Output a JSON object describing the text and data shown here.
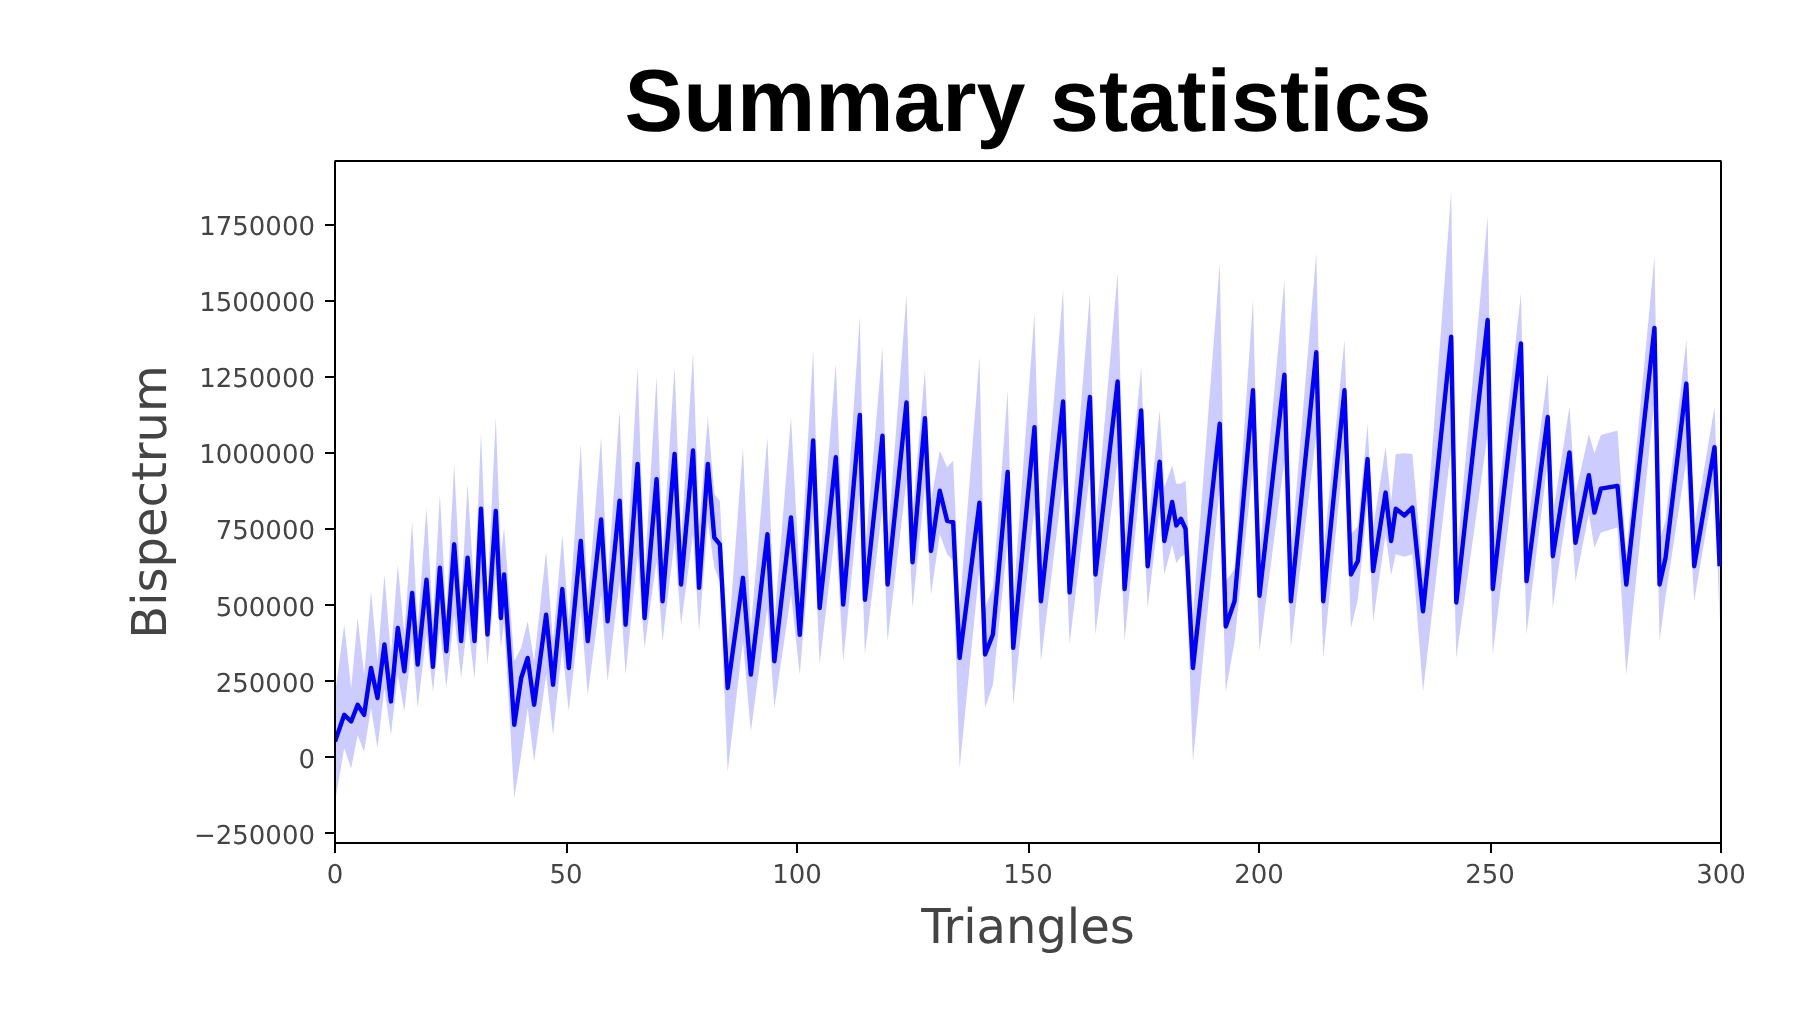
{
  "chart_data": {
    "type": "line",
    "title": "Summary statistics",
    "xlabel": "Triangles",
    "ylabel": "Bispectrum",
    "xlim": [
      0,
      300
    ],
    "ylim": [
      -280000,
      1960000
    ],
    "xticks": [
      0,
      50,
      100,
      150,
      200,
      250,
      300
    ],
    "yticks": [
      {
        "value": -250000,
        "label": "−250000"
      },
      0,
      250000,
      500000,
      750000,
      1000000,
      1250000,
      1500000,
      1750000
    ],
    "x": [
      0,
      2.0,
      3.5,
      4.9,
      6.3,
      7.8,
      9.2,
      10.7,
      12.1,
      13.6,
      15.0,
      16.7,
      17.9,
      19.8,
      21.2,
      22.7,
      24.1,
      25.8,
      27.3,
      28.7,
      30.2,
      31.6,
      33.0,
      34.8,
      35.9,
      36.6,
      38.8,
      40.3,
      41.7,
      43.1,
      45.7,
      47.2,
      49.2,
      50.6,
      53.2,
      54.7,
      57.6,
      59.0,
      61.6,
      62.9,
      65.5,
      67.0,
      69.6,
      70.9,
      73.5,
      74.9,
      77.5,
      78.8,
      80.7,
      82.1,
      83.3,
      85.0,
      88.3,
      90.0,
      93.6,
      95.1,
      98.7,
      100.6,
      103.5,
      104.9,
      108.4,
      110.0,
      113.6,
      114.7,
      118.5,
      119.6,
      123.7,
      125.0,
      127.7,
      129.0,
      130.9,
      132.5,
      133.8,
      135.2,
      139.5,
      140.7,
      142.4,
      145.6,
      146.8,
      151.4,
      152.8,
      157.6,
      159.0,
      163.4,
      164.6,
      169.4,
      170.9,
      174.5,
      175.9,
      178.5,
      179.5,
      181.2,
      182.1,
      183.1,
      184.1,
      185.7,
      191.5,
      192.8,
      194.7,
      198.7,
      200.1,
      205.5,
      206.9,
      212.4,
      213.9,
      218.5,
      219.9,
      221.4,
      223.5,
      224.7,
      227.4,
      228.6,
      229.6,
      231.5,
      233.2,
      235.5,
      241.6,
      242.7,
      249.5,
      250.6,
      256.7,
      257.9,
      262.5,
      263.6,
      267.2,
      268.5,
      271.4,
      272.6,
      274.0,
      277.6,
      279.5,
      285.6,
      286.7,
      288.0,
      292.5,
      294.2,
      298.6,
      299.7
    ],
    "series": [
      {
        "color": "#0000ff",
        "values": [
          53000,
          141000,
          119000,
          174000,
          141000,
          295000,
          196000,
          372000,
          185000,
          426000,
          284000,
          541000,
          306000,
          585000,
          299000,
          624000,
          350000,
          701000,
          383000,
          657000,
          383000,
          818000,
          405000,
          811000,
          459000,
          602000,
          108000,
          262000,
          328000,
          174000,
          470000,
          240000,
          554000,
          295000,
          712000,
          383000,
          783000,
          448000,
          844000,
          437000,
          965000,
          459000,
          915000,
          514000,
          998000,
          569000,
          1009000,
          558000,
          965000,
          723000,
          701000,
          229000,
          591000,
          273000,
          734000,
          317000,
          789000,
          404000,
          1042000,
          492000,
          987000,
          503000,
          1126000,
          519000,
          1058000,
          569000,
          1167000,
          642000,
          1115000,
          679000,
          877000,
          778000,
          774000,
          328000,
          838000,
          339000,
          405000,
          939000,
          361000,
          1086000,
          514000,
          1170000,
          543000,
          1185000,
          602000,
          1236000,
          554000,
          1141000,
          629000,
          972000,
          712000,
          840000,
          763000,
          785000,
          752000,
          295000,
          1097000,
          431000,
          514000,
          1207000,
          532000,
          1258000,
          514000,
          1332000,
          514000,
          1207000,
          602000,
          646000,
          981000,
          613000,
          871000,
          712000,
          818000,
          796000,
          822000,
          481000,
          1383000,
          510000,
          1438000,
          554000,
          1361000,
          580000,
          1119000,
          662000,
          1003000,
          706000,
          928000,
          805000,
          884000,
          893000,
          569000,
          1412000,
          569000,
          657000,
          1229000,
          629000,
          1020000,
          629000
        ],
        "lower": [
          -145000,
          31000,
          -35000,
          75000,
          20000,
          163000,
          31000,
          229000,
          75000,
          273000,
          152000,
          383000,
          163000,
          405000,
          218000,
          426000,
          229000,
          470000,
          262000,
          448000,
          262000,
          580000,
          306000,
          602000,
          361000,
          448000,
          -134000,
          9000,
          163000,
          -13000,
          273000,
          75000,
          361000,
          152000,
          492000,
          207000,
          536000,
          251000,
          580000,
          273000,
          668000,
          361000,
          646000,
          383000,
          712000,
          437000,
          734000,
          415000,
          778000,
          624000,
          580000,
          -46000,
          383000,
          86000,
          492000,
          163000,
          536000,
          273000,
          800000,
          306000,
          756000,
          317000,
          866000,
          339000,
          822000,
          383000,
          910000,
          492000,
          888000,
          536000,
          734000,
          668000,
          646000,
          -35000,
          624000,
          163000,
          240000,
          712000,
          174000,
          822000,
          317000,
          910000,
          372000,
          932000,
          405000,
          976000,
          383000,
          932000,
          492000,
          822000,
          602000,
          700000,
          640000,
          660000,
          668000,
          -13000,
          888000,
          218000,
          380000,
          954000,
          350000,
          976000,
          361000,
          1064000,
          328000,
          1020000,
          426000,
          520000,
          844000,
          448000,
          734000,
          600000,
          668000,
          660000,
          668000,
          218000,
          1020000,
          328000,
          1064000,
          339000,
          1108000,
          405000,
          976000,
          492000,
          866000,
          580000,
          800000,
          690000,
          740000,
          756000,
          273000,
          1174000,
          383000,
          530000,
          976000,
          514000,
          910000,
          448000
        ],
        "upper": [
          207000,
          437000,
          229000,
          459000,
          273000,
          547000,
          317000,
          602000,
          339000,
          635000,
          405000,
          778000,
          426000,
          822000,
          448000,
          866000,
          470000,
          965000,
          514000,
          899000,
          536000,
          1068000,
          536000,
          1119000,
          668000,
          756000,
          317000,
          361000,
          448000,
          317000,
          679000,
          383000,
          734000,
          448000,
          1031000,
          514000,
          1053000,
          580000,
          1141000,
          580000,
          1284000,
          602000,
          1251000,
          668000,
          1284000,
          712000,
          1332000,
          756000,
          1119000,
          866000,
          844000,
          361000,
          1020000,
          426000,
          1053000,
          448000,
          1119000,
          580000,
          1339000,
          624000,
          1295000,
          646000,
          1449000,
          668000,
          1350000,
          712000,
          1521000,
          800000,
          1273000,
          844000,
          1009000,
          954000,
          976000,
          492000,
          1317000,
          492000,
          560000,
          1207000,
          514000,
          1460000,
          668000,
          1537000,
          690000,
          1526000,
          756000,
          1592000,
          712000,
          1284000,
          756000,
          1141000,
          888000,
          960000,
          900000,
          900000,
          910000,
          470000,
          1625000,
          580000,
          620000,
          1504000,
          668000,
          1570000,
          668000,
          1658000,
          668000,
          1372000,
          734000,
          760000,
          1097000,
          756000,
          1020000,
          840000,
          998000,
          1000000,
          998000,
          602000,
          1860000,
          646000,
          1779000,
          690000,
          1526000,
          734000,
          1262000,
          800000,
          1152000,
          866000,
          1064000,
          1000000,
          1060000,
          1075000,
          668000,
          1647000,
          712000,
          780000,
          1372000,
          756000,
          1152000,
          712000
        ]
      }
    ]
  }
}
